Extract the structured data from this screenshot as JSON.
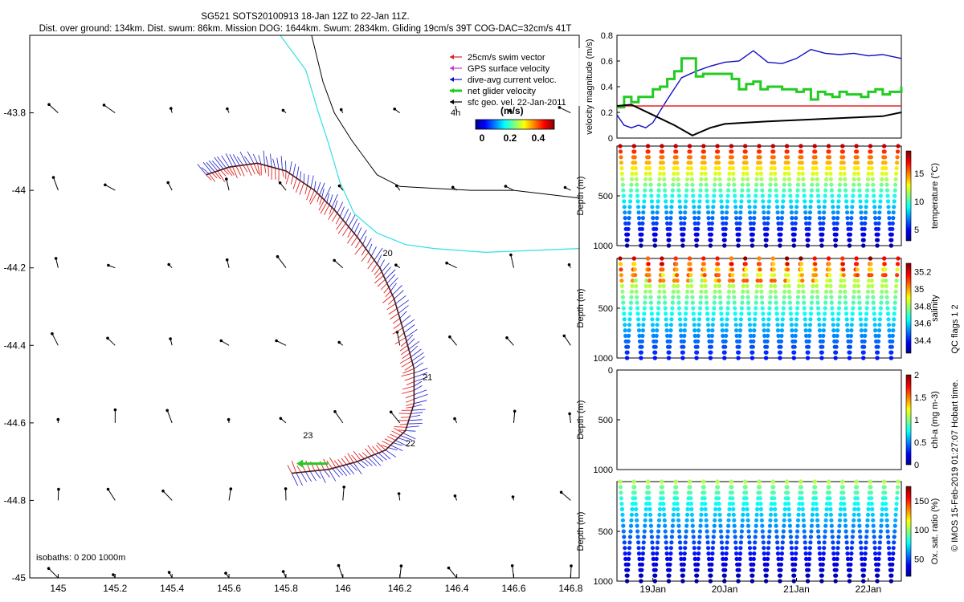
{
  "header": {
    "line1": "SG521 SOTS20100913 18-Jan 12Z to 22-Jan 11Z.",
    "line2": "Dist. over ground: 134km. Dist. swum: 86km. Mission DOG: 1644km. Swum: 2834km. Gliding 19cm/s 39T COG-DAC=32cm/s 41T"
  },
  "map": {
    "x_ticks": [
      "145",
      "145.2",
      "145.4",
      "145.6",
      "145.8",
      "146",
      "146.2",
      "146.4",
      "146.6",
      "146.8"
    ],
    "y_ticks": [
      "-43.8",
      "-44",
      "-44.2",
      "-44.4",
      "-44.6",
      "-44.8",
      "-45"
    ],
    "xlim": [
      144.9,
      146.83
    ],
    "ylim": [
      -45.0,
      -43.6
    ],
    "legend": [
      {
        "label": "25cm/s swim vector",
        "color": "#e02020"
      },
      {
        "label": "GPS surface velocity",
        "color": "#cc33cc"
      },
      {
        "label": "dive-avg current veloc.",
        "color": "#1010c0"
      },
      {
        "label": "net glider velocity",
        "color": "#22cc22"
      },
      {
        "label": "sfc geo. vel. 22-Jan-2011",
        "color": "#000000"
      }
    ],
    "colorbar_title": "(m/s)",
    "colorbar_ticks": [
      "0",
      "0.2",
      "0.4"
    ],
    "colorbar_side_label": "4h",
    "isobaths_label": "isobaths: 0   200  1000m",
    "day_labels": [
      {
        "text": "20",
        "lon": 146.14,
        "lat": -44.17
      },
      {
        "text": "21",
        "lon": 146.28,
        "lat": -44.49
      },
      {
        "text": "22",
        "lon": 146.22,
        "lat": -44.66
      },
      {
        "text": "23",
        "lon": 145.86,
        "lat": -44.64
      }
    ],
    "glider_track": [
      [
        145.52,
        -43.96
      ],
      [
        145.6,
        -43.94
      ],
      [
        145.7,
        -43.93
      ],
      [
        145.8,
        -43.95
      ],
      [
        145.9,
        -44.0
      ],
      [
        145.97,
        -44.05
      ],
      [
        146.05,
        -44.12
      ],
      [
        146.13,
        -44.2
      ],
      [
        146.18,
        -44.28
      ],
      [
        146.22,
        -44.38
      ],
      [
        146.25,
        -44.46
      ],
      [
        146.25,
        -44.55
      ],
      [
        146.22,
        -44.62
      ],
      [
        146.15,
        -44.67
      ],
      [
        146.05,
        -44.7
      ],
      [
        145.95,
        -44.72
      ],
      [
        145.82,
        -44.73
      ]
    ],
    "cyan_isobath": [
      [
        145.78,
        -43.6
      ],
      [
        145.87,
        -43.69
      ],
      [
        145.91,
        -43.79
      ],
      [
        145.95,
        -43.88
      ],
      [
        145.99,
        -43.98
      ],
      [
        146.04,
        -44.06
      ],
      [
        146.12,
        -44.11
      ],
      [
        146.22,
        -44.14
      ],
      [
        146.32,
        -44.15
      ],
      [
        146.5,
        -44.16
      ],
      [
        146.83,
        -44.15
      ]
    ],
    "black_isobath": [
      [
        145.89,
        -43.6
      ],
      [
        145.93,
        -43.72
      ],
      [
        145.97,
        -43.8
      ],
      [
        146.03,
        -43.87
      ],
      [
        146.08,
        -43.92
      ],
      [
        146.12,
        -43.96
      ],
      [
        146.2,
        -43.99
      ],
      [
        146.45,
        -44.0
      ],
      [
        146.6,
        -44.0
      ],
      [
        146.83,
        -44.02
      ]
    ],
    "geo_grid_lons": [
      145.0,
      145.2,
      145.4,
      145.6,
      145.8,
      146.0,
      146.2,
      146.4,
      146.6,
      146.8
    ],
    "geo_grid_lats": [
      -43.8,
      -44.0,
      -44.2,
      -44.4,
      -44.6,
      -44.8,
      -45.0
    ]
  },
  "chart_data": [
    {
      "type": "line",
      "ylabel": "velocity magnitude (m/s)",
      "ylim": [
        0,
        0.8
      ],
      "y_ticks": [
        "0",
        "0.2",
        "0.4",
        "0.6",
        "0.8"
      ],
      "xlim": [
        18.5,
        22.46
      ],
      "series": [
        {
          "color": "#1010c0",
          "x": [
            18.5,
            18.6,
            18.7,
            18.8,
            18.9,
            19.0,
            19.2,
            19.4,
            19.6,
            19.8,
            20.0,
            20.2,
            20.4,
            20.6,
            20.8,
            21.0,
            21.2,
            21.4,
            21.6,
            21.8,
            22.0,
            22.2,
            22.46
          ],
          "y": [
            0.18,
            0.1,
            0.08,
            0.1,
            0.08,
            0.12,
            0.3,
            0.47,
            0.52,
            0.56,
            0.59,
            0.6,
            0.68,
            0.59,
            0.58,
            0.62,
            0.69,
            0.66,
            0.65,
            0.66,
            0.64,
            0.65,
            0.62
          ]
        },
        {
          "color": "#22cc22",
          "x": [
            18.5,
            18.6,
            18.7,
            18.8,
            18.9,
            19.0,
            19.1,
            19.2,
            19.3,
            19.4,
            19.5,
            19.6,
            19.7,
            19.8,
            19.9,
            20.0,
            20.1,
            20.2,
            20.3,
            20.4,
            20.5,
            20.6,
            20.7,
            20.8,
            20.9,
            21.0,
            21.1,
            21.2,
            21.3,
            21.4,
            21.5,
            21.6,
            21.7,
            21.8,
            21.9,
            22.0,
            22.1,
            22.2,
            22.3,
            22.46
          ],
          "y": [
            0.24,
            0.32,
            0.28,
            0.32,
            0.32,
            0.38,
            0.4,
            0.46,
            0.52,
            0.62,
            0.62,
            0.48,
            0.5,
            0.5,
            0.5,
            0.5,
            0.46,
            0.38,
            0.42,
            0.44,
            0.38,
            0.4,
            0.4,
            0.38,
            0.38,
            0.36,
            0.38,
            0.3,
            0.36,
            0.34,
            0.32,
            0.36,
            0.34,
            0.34,
            0.32,
            0.36,
            0.38,
            0.34,
            0.36,
            0.4
          ]
        },
        {
          "color": "#ee2020",
          "x": [
            18.5,
            22.46
          ],
          "y": [
            0.25,
            0.25
          ]
        },
        {
          "color": "#000000",
          "x": [
            18.5,
            18.7,
            19.0,
            19.3,
            19.55,
            19.8,
            20.0,
            20.3,
            20.6,
            21.0,
            21.4,
            21.8,
            22.2,
            22.46
          ],
          "y": [
            0.25,
            0.26,
            0.18,
            0.1,
            0.02,
            0.08,
            0.11,
            0.12,
            0.13,
            0.14,
            0.15,
            0.16,
            0.17,
            0.2
          ]
        }
      ]
    },
    {
      "type": "scatter",
      "ylabel": "Depth (m)",
      "ylim": [
        1000,
        0
      ],
      "y_ticks": [
        "500",
        "1000"
      ],
      "colorbar": {
        "label": "temperature (°C)",
        "ticks": [
          "5",
          "10",
          "15"
        ],
        "range": [
          3,
          19
        ]
      },
      "profile": {
        "dives": 20,
        "surface_value": 18,
        "deep_value": 3.5
      }
    },
    {
      "type": "scatter",
      "ylabel": "Depth (m)",
      "ylim": [
        1000,
        0
      ],
      "y_ticks": [
        "500",
        "1000"
      ],
      "colorbar": {
        "label": "salinity",
        "ticks": [
          "34.4",
          "34.6",
          "34.8",
          "35",
          "35.2"
        ],
        "range": [
          34.25,
          35.3
        ]
      },
      "profile": {
        "dives": 20,
        "surface_value": 35.1,
        "deep_value": 34.4
      }
    },
    {
      "type": "scatter",
      "ylabel": "Depth (m)",
      "ylim": [
        1000,
        0
      ],
      "y_ticks": [
        "0",
        "500",
        "1000"
      ],
      "colorbar": {
        "label": "chl-a (mg m-3)",
        "ticks": [
          "0",
          "0.5",
          "1",
          "1.5",
          "2"
        ],
        "range": [
          0,
          2
        ]
      },
      "profile": {
        "dives": 0
      }
    },
    {
      "type": "scatter",
      "ylabel": "Depth (m)",
      "ylim": [
        1000,
        0
      ],
      "y_ticks": [
        "500",
        "1000"
      ],
      "x_ticks": [
        "19Jan",
        "20Jan",
        "21Jan",
        "22Jan"
      ],
      "colorbar": {
        "label": "Ox. sat. ratio (%)",
        "ticks": [
          "50",
          "100",
          "150"
        ],
        "range": [
          20,
          175
        ]
      },
      "profile": {
        "dives": 20,
        "surface_value": 105,
        "deep_value": 25
      }
    }
  ],
  "footer": {
    "side_label_top": "QC flags 1  2",
    "side_label_bottom": "© IMOS 15-Feb-2019 01:27:07 Hobart time."
  }
}
